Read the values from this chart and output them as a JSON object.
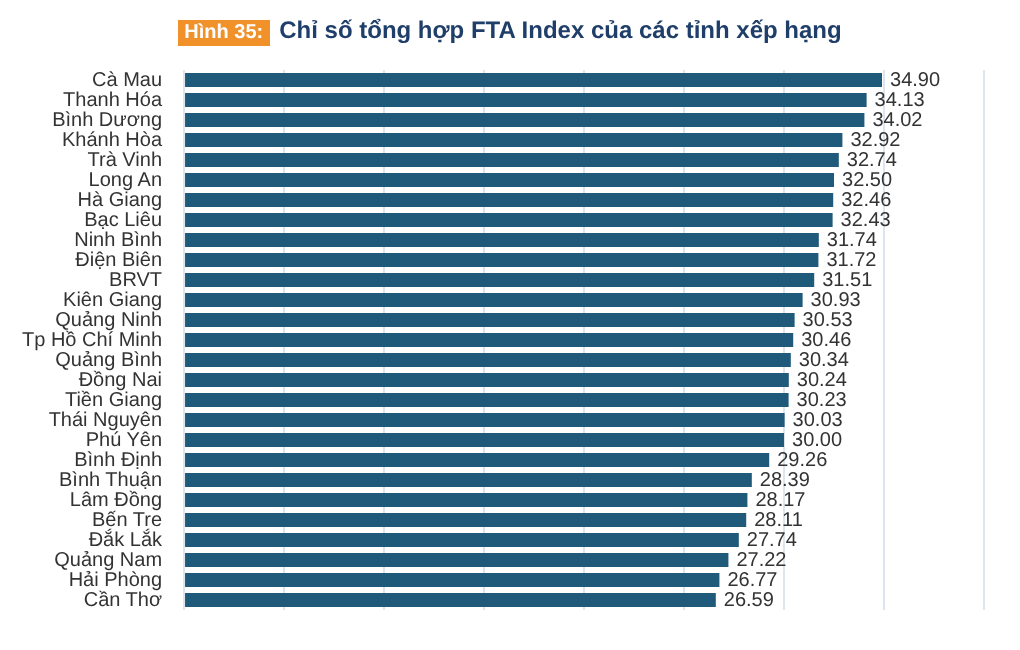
{
  "chart_data": {
    "type": "bar",
    "orientation": "horizontal",
    "title": "Chỉ số tổng hợp FTA Index của các tỉnh xếp hạng",
    "annotations": [
      "Hình 35:"
    ],
    "categories": [
      "Cà Mau",
      "Thanh Hóa",
      "Bình Dương",
      "Khánh Hòa",
      "Trà Vinh",
      "Long An",
      "Hà Giang",
      "Bạc Liêu",
      "Ninh Bình",
      "Điện Biên",
      "BRVT",
      "Kiên Giang",
      "Quảng Ninh",
      "Tp Hồ Chí Minh",
      "Quảng Bình",
      "Đồng Nai",
      "Tiền Giang",
      "Thái Nguyên",
      "Phú Yên",
      "Bình Định",
      "Bình Thuận",
      "Lâm Đồng",
      "Bến Tre",
      "Đắk Lắk",
      "Quảng Nam",
      "Hải Phòng",
      "Cần Thơ"
    ],
    "values": [
      34.9,
      34.13,
      34.02,
      32.92,
      32.74,
      32.5,
      32.46,
      32.43,
      31.74,
      31.72,
      31.51,
      30.93,
      30.53,
      30.46,
      30.34,
      30.24,
      30.23,
      30.03,
      30.0,
      29.26,
      28.39,
      28.17,
      28.11,
      27.74,
      27.22,
      26.77,
      26.59
    ],
    "value_labels": [
      "34.90",
      "34.13",
      "34.02",
      "32.92",
      "32.74",
      "32.50",
      "32.46",
      "32.43",
      "31.74",
      "31.72",
      "31.51",
      "30.93",
      "30.53",
      "30.46",
      "30.34",
      "30.24",
      "30.23",
      "30.03",
      "30.00",
      "29.26",
      "28.39",
      "28.17",
      "28.11",
      "27.74",
      "27.22",
      "26.77",
      "26.59"
    ],
    "color": "#1f5a7a",
    "xlim": [
      0,
      40
    ],
    "xticks": [
      {
        "value": 0,
        "label": null
      },
      {
        "value": 5,
        "label": null
      },
      {
        "value": 10,
        "label": null
      },
      {
        "value": 15,
        "label": null
      },
      {
        "value": 20,
        "label": null
      },
      {
        "value": 25,
        "label": null
      },
      {
        "value": 30,
        "label": null
      },
      {
        "value": 35,
        "label": null
      },
      {
        "value": 40,
        "label": null
      }
    ],
    "grid": "x",
    "tick_labels": "y",
    "legend": false
  }
}
